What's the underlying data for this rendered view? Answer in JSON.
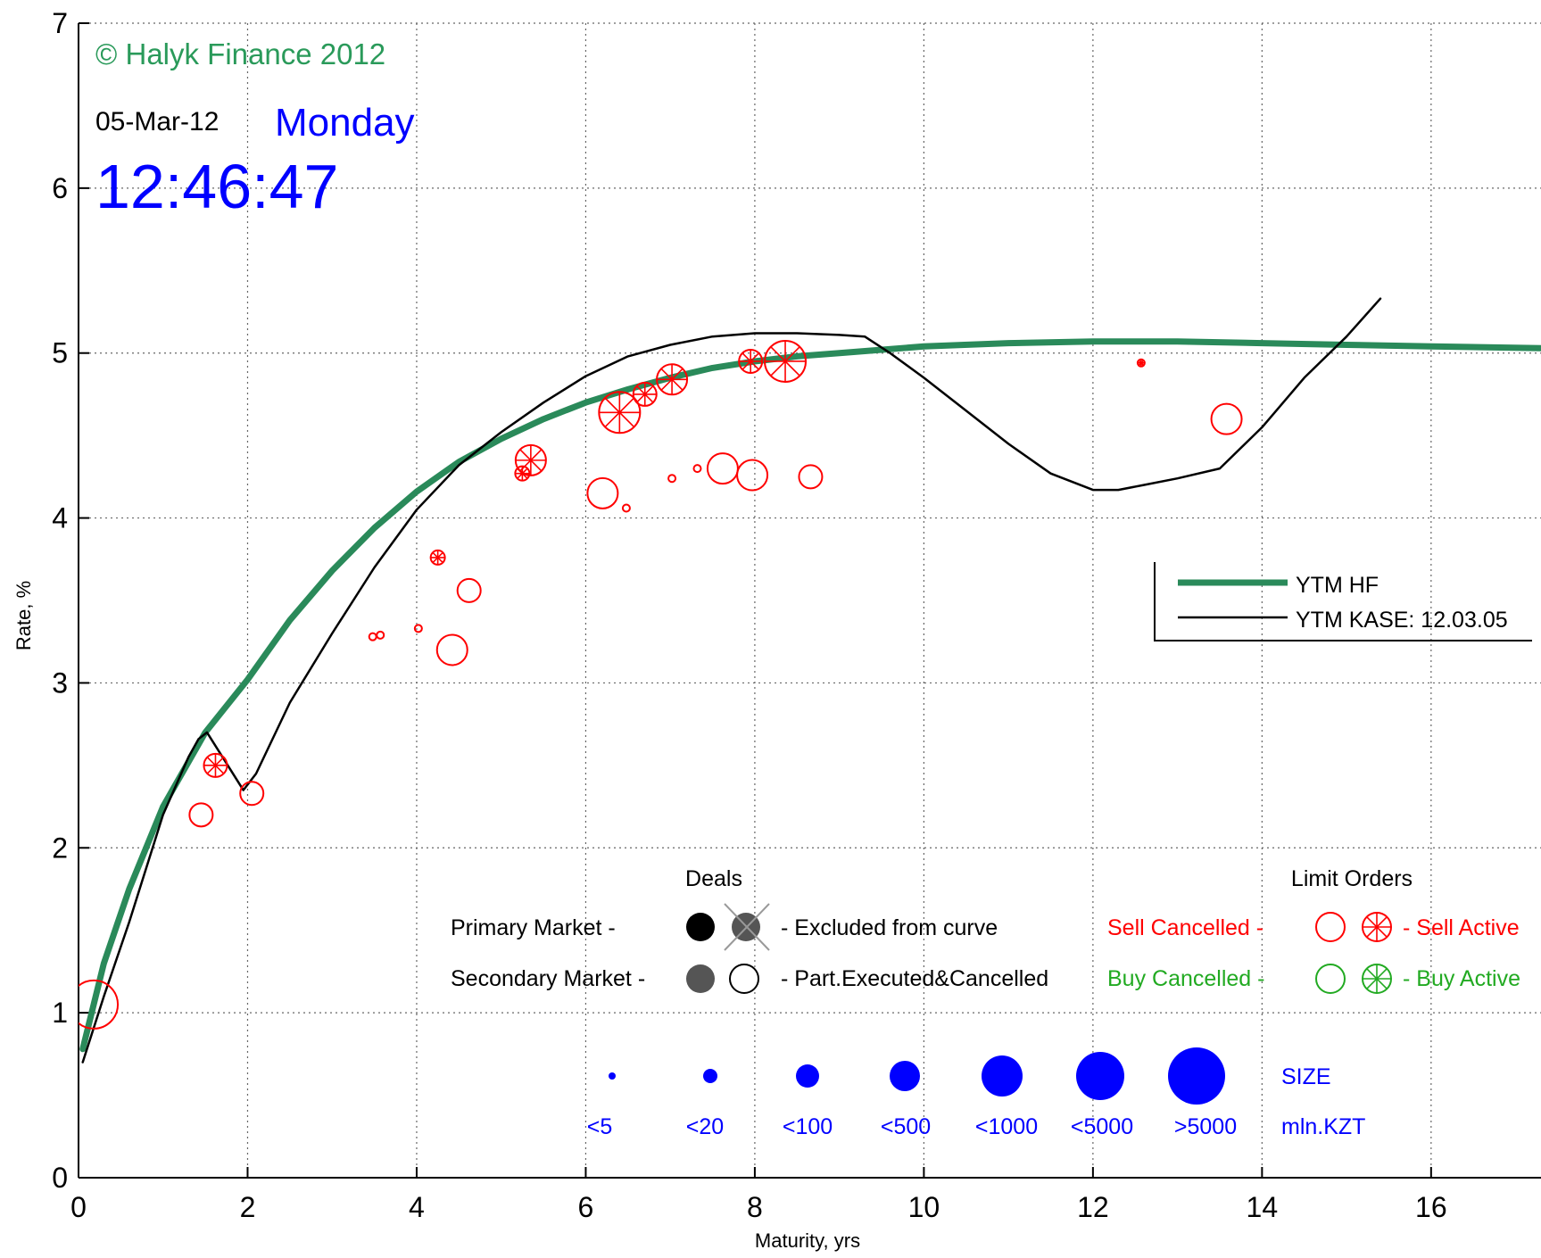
{
  "overlay": {
    "copyright": "© Halyk Finance 2012",
    "date": "05-Mar-12",
    "weekday": "Monday",
    "time": "12:46:47"
  },
  "legend_box": {
    "entries": [
      {
        "label": "YTM HF",
        "color": "#2a8a5a",
        "width": "thick"
      },
      {
        "label": "YTM KASE: 12.03.05",
        "color": "#000000",
        "width": "thin"
      }
    ]
  },
  "key": {
    "deals_title": "Deals",
    "limit_orders_title": "Limit Orders",
    "primary_market": "Primary Market  -",
    "secondary_market": "Secondary Market -",
    "excluded": "- Excluded from curve",
    "part_executed": "- Part.Executed&Cancelled",
    "sell_cancelled": "Sell Cancelled -",
    "sell_active": "- Sell Active",
    "buy_cancelled": "Buy Cancelled -",
    "buy_active": "- Buy Active",
    "size_title": "SIZE",
    "size_unit": "mln.KZT",
    "size_labels": [
      "<5",
      "<20",
      "<100",
      "<500",
      "<1000",
      "<5000",
      ">5000"
    ],
    "colors": {
      "sell": "#ff0000",
      "buy": "#22aa22",
      "size": "#0000ff",
      "deal_dark": "#000000",
      "deal_gray": "#555555",
      "excluded_cross": "#999999"
    }
  },
  "chart_data": {
    "type": "scatter",
    "xlabel": "Maturity, yrs",
    "ylabel": "Rate, %",
    "xlim": [
      0,
      17.3
    ],
    "ylim": [
      0,
      7
    ],
    "xticks": [
      0,
      2,
      4,
      6,
      8,
      10,
      12,
      14,
      16
    ],
    "yticks": [
      0,
      1,
      2,
      3,
      4,
      5,
      6,
      7
    ],
    "grid": true,
    "legend_position": "right",
    "series": [
      {
        "name": "YTM HF",
        "kind": "line",
        "color": "#2a8a5a",
        "x": [
          0.05,
          0.3,
          0.6,
          1.0,
          1.5,
          2.0,
          2.5,
          3.0,
          3.5,
          4.0,
          4.5,
          5.0,
          5.5,
          6.0,
          6.5,
          7.0,
          7.5,
          8.0,
          8.5,
          9.0,
          10.0,
          11.0,
          12.0,
          13.0,
          14.0,
          15.0,
          16.0,
          17.3
        ],
        "y": [
          0.78,
          1.3,
          1.75,
          2.25,
          2.7,
          3.02,
          3.38,
          3.68,
          3.94,
          4.16,
          4.34,
          4.48,
          4.6,
          4.7,
          4.78,
          4.85,
          4.91,
          4.95,
          4.98,
          5.0,
          5.04,
          5.06,
          5.07,
          5.07,
          5.06,
          5.05,
          5.04,
          5.03
        ]
      },
      {
        "name": "YTM KASE: 12.03.05",
        "kind": "line",
        "color": "#000000",
        "x": [
          0.05,
          0.3,
          0.6,
          1.0,
          1.3,
          1.42,
          1.52,
          1.95,
          2.1,
          2.5,
          3.0,
          3.5,
          4.0,
          4.5,
          5.0,
          5.5,
          6.0,
          6.5,
          7.0,
          7.5,
          8.0,
          8.5,
          9.0,
          9.3,
          9.6,
          10.0,
          10.5,
          11.0,
          11.5,
          12.0,
          12.3,
          12.6,
          13.0,
          13.5,
          14.0,
          14.5,
          15.0,
          15.4
        ],
        "y": [
          0.7,
          1.1,
          1.55,
          2.2,
          2.55,
          2.66,
          2.7,
          2.35,
          2.45,
          2.88,
          3.3,
          3.7,
          4.05,
          4.32,
          4.52,
          4.7,
          4.86,
          4.98,
          5.05,
          5.1,
          5.12,
          5.12,
          5.11,
          5.1,
          5.0,
          4.85,
          4.65,
          4.45,
          4.27,
          4.17,
          4.17,
          4.2,
          4.24,
          4.3,
          4.55,
          4.85,
          5.1,
          5.33
        ]
      }
    ],
    "orders": [
      {
        "type": "sell_cancelled",
        "x": 0.18,
        "y": 1.05,
        "size": 6
      },
      {
        "type": "sell_cancelled",
        "x": 1.45,
        "y": 2.2,
        "size": 3
      },
      {
        "type": "sell_active",
        "x": 1.62,
        "y": 2.5,
        "size": 3
      },
      {
        "type": "sell_cancelled",
        "x": 2.05,
        "y": 2.33,
        "size": 3
      },
      {
        "type": "sell_cancelled",
        "x": 3.48,
        "y": 3.28,
        "size": 1
      },
      {
        "type": "sell_cancelled",
        "x": 3.57,
        "y": 3.29,
        "size": 1
      },
      {
        "type": "sell_cancelled",
        "x": 4.02,
        "y": 3.33,
        "size": 1
      },
      {
        "type": "sell_active",
        "x": 4.25,
        "y": 3.76,
        "size": 2
      },
      {
        "type": "sell_cancelled",
        "x": 4.42,
        "y": 3.2,
        "size": 4
      },
      {
        "type": "sell_cancelled",
        "x": 4.62,
        "y": 3.56,
        "size": 3
      },
      {
        "type": "sell_active",
        "x": 5.25,
        "y": 4.27,
        "size": 2
      },
      {
        "type": "sell_active",
        "x": 5.35,
        "y": 4.35,
        "size": 4
      },
      {
        "type": "sell_cancelled",
        "x": 6.2,
        "y": 4.15,
        "size": 4
      },
      {
        "type": "sell_cancelled",
        "x": 6.48,
        "y": 4.06,
        "size": 1
      },
      {
        "type": "sell_active",
        "x": 6.4,
        "y": 4.64,
        "size": 5
      },
      {
        "type": "sell_active",
        "x": 6.7,
        "y": 4.75,
        "size": 3
      },
      {
        "type": "sell_active",
        "x": 7.02,
        "y": 4.84,
        "size": 4
      },
      {
        "type": "sell_cancelled",
        "x": 7.02,
        "y": 4.24,
        "size": 1
      },
      {
        "type": "sell_cancelled",
        "x": 7.32,
        "y": 4.3,
        "size": 1
      },
      {
        "type": "sell_cancelled",
        "x": 7.62,
        "y": 4.3,
        "size": 4
      },
      {
        "type": "sell_cancelled",
        "x": 7.97,
        "y": 4.26,
        "size": 4
      },
      {
        "type": "sell_active",
        "x": 7.95,
        "y": 4.95,
        "size": 3
      },
      {
        "type": "sell_active",
        "x": 8.36,
        "y": 4.95,
        "size": 5
      },
      {
        "type": "sell_cancelled",
        "x": 8.66,
        "y": 4.25,
        "size": 3
      },
      {
        "type": "sell_active",
        "x": 12.57,
        "y": 4.94,
        "size": 1
      },
      {
        "type": "sell_cancelled",
        "x": 13.58,
        "y": 4.6,
        "size": 4
      }
    ]
  }
}
